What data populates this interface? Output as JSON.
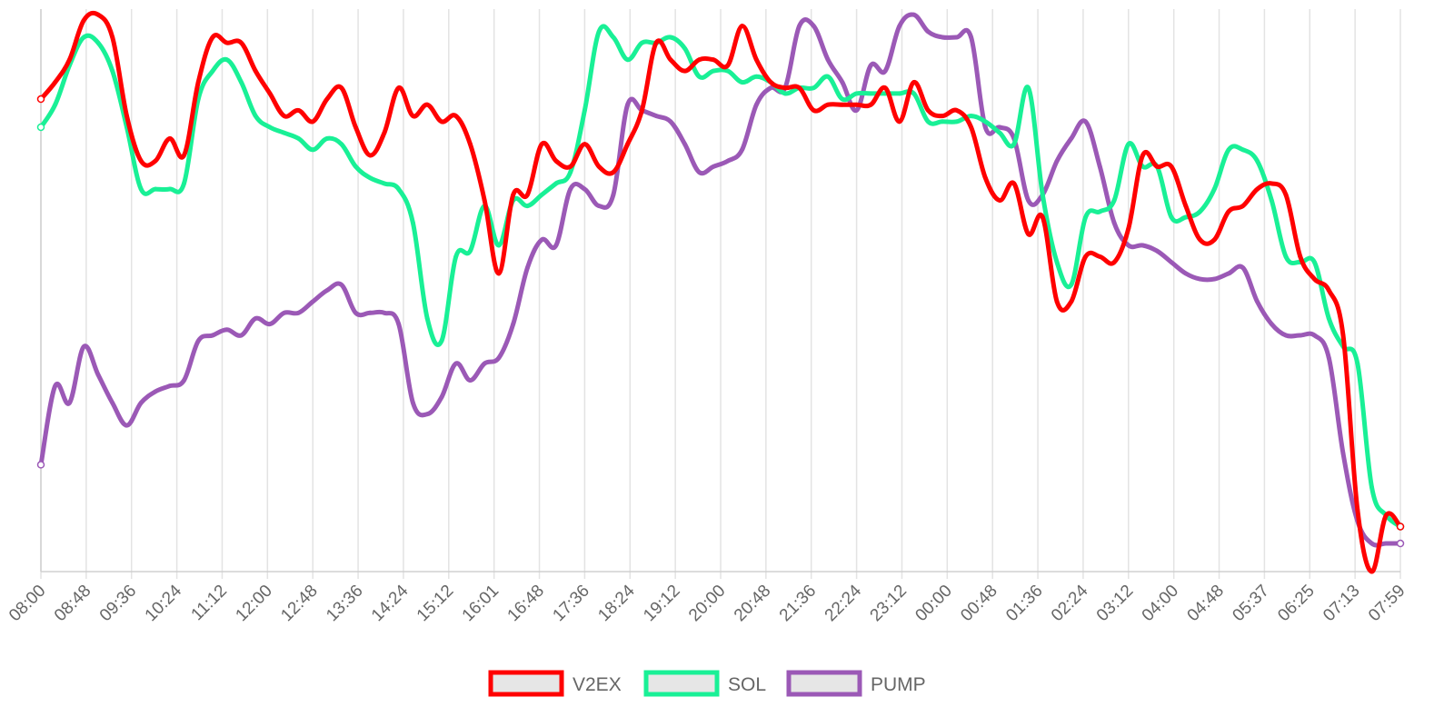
{
  "chart_data": {
    "type": "line",
    "title": "",
    "xlabel": "",
    "ylabel": "",
    "legend_position": "bottom",
    "grid": "vertical",
    "x_ticks": [
      "08:00",
      "08:48",
      "09:36",
      "10:24",
      "11:12",
      "12:00",
      "12:48",
      "13:36",
      "14:24",
      "15:12",
      "16:01",
      "16:48",
      "17:36",
      "18:24",
      "19:12",
      "20:00",
      "20:48",
      "21:36",
      "22:24",
      "23:12",
      "00:00",
      "00:48",
      "01:36",
      "02:24",
      "03:12",
      "04:00",
      "04:48",
      "05:37",
      "06:25",
      "07:13",
      "07:59"
    ],
    "x_range_points": [
      0,
      90
    ],
    "ylim": [
      0,
      100
    ],
    "series": [
      {
        "name": "V2EX",
        "color": "#ff0000",
        "values": [
          84,
          87,
          91,
          98,
          99,
          95,
          81,
          73,
          73,
          77,
          74,
          87,
          95,
          94,
          94,
          89,
          85,
          81,
          82,
          80,
          84,
          86,
          79,
          74,
          78,
          86,
          81,
          83,
          80,
          81,
          76,
          66,
          53,
          67,
          67,
          76,
          73,
          72,
          76,
          72,
          71,
          76,
          82,
          94,
          91,
          89,
          91,
          91,
          90,
          97,
          91,
          87,
          86,
          86,
          82,
          83,
          83,
          83,
          83,
          86,
          80,
          87,
          82,
          81,
          82,
          79,
          70,
          66,
          69,
          60,
          63,
          48,
          48,
          56,
          56,
          55,
          61,
          74,
          72,
          72,
          65,
          59,
          59,
          64,
          65,
          68,
          69,
          67,
          56,
          52,
          50,
          42,
          11,
          0,
          10,
          8
        ]
      },
      {
        "name": "SOL",
        "color": "#19f096",
        "values": [
          79,
          83,
          90,
          95,
          94,
          89,
          79,
          68,
          68,
          68,
          69,
          84,
          89,
          91,
          87,
          81,
          79,
          78,
          77,
          75,
          77,
          76,
          72,
          70,
          69,
          68,
          62,
          45,
          41,
          56,
          57,
          65,
          58,
          66,
          65,
          67,
          69,
          71,
          82,
          96,
          95,
          91,
          94,
          94,
          95,
          93,
          88,
          89,
          89,
          87,
          88,
          87,
          85,
          86,
          86,
          88,
          84,
          85,
          85,
          85,
          85,
          85,
          80,
          80,
          80,
          81,
          80,
          78,
          76,
          86,
          67,
          55,
          51,
          63,
          64,
          66,
          76,
          72,
          72,
          63,
          63,
          64,
          68,
          75,
          75,
          73,
          66,
          56,
          55,
          55,
          45,
          40,
          37,
          15,
          10,
          8
        ]
      },
      {
        "name": "PUMP",
        "color": "#9b59b6",
        "values": [
          19,
          33,
          30,
          40,
          35,
          30,
          26,
          30,
          32,
          33,
          34,
          41,
          42,
          43,
          42,
          45,
          44,
          46,
          46,
          48,
          50,
          51,
          46,
          46,
          46,
          44,
          30,
          28,
          31,
          37,
          34,
          37,
          38,
          44,
          54,
          59,
          58,
          68,
          68,
          65,
          67,
          83,
          82,
          81,
          80,
          76,
          71,
          72,
          73,
          75,
          83,
          86,
          86,
          97,
          97,
          91,
          87,
          82,
          90,
          89,
          97,
          99,
          96,
          95,
          95,
          95,
          79,
          79,
          77,
          66,
          67,
          73,
          77,
          80,
          72,
          62,
          58,
          58,
          57,
          55,
          53,
          52,
          52,
          53,
          54,
          48,
          44,
          42,
          42,
          42,
          38,
          21,
          9,
          5,
          5,
          5
        ]
      }
    ]
  }
}
